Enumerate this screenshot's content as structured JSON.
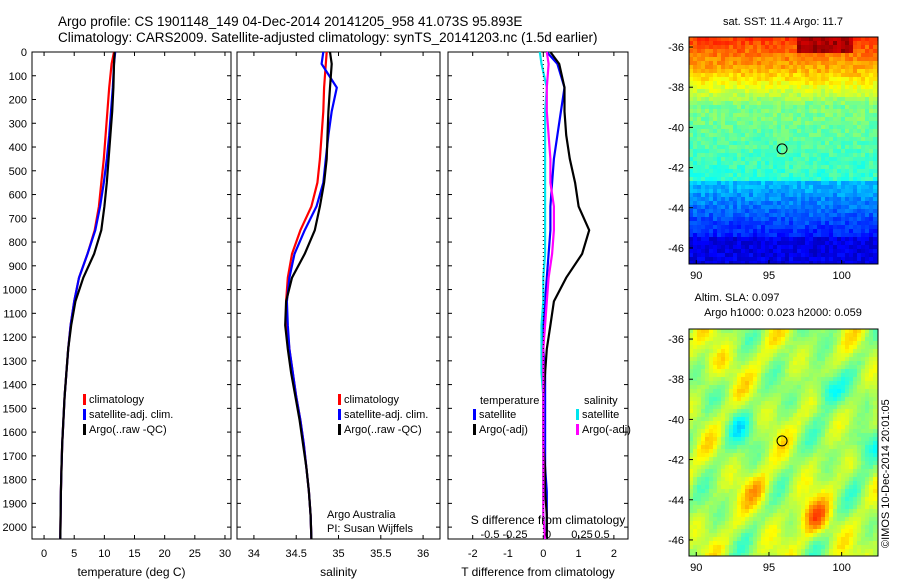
{
  "header": {
    "line1": "Argo profile: CS 1901148_149 04-Dec-2014 20141205_958 41.073S 95.893E",
    "line2": "Climatology: CARS2009. Satellite-adjusted climatology: synTS_20141203.nc (1.5d earlier)"
  },
  "side_label": "©IMOS 10-Dec-2014 20:01:05",
  "colors": {
    "climatology": "#ff0000",
    "satellite": "#0000ff",
    "argo": "#000000",
    "sal_satellite": "#00e5ee",
    "sal_argo": "#ff00ff"
  },
  "chart_data": [
    {
      "type": "line",
      "panel": "temperature",
      "xlabel": "temperature (deg C)",
      "ylabel": "",
      "xlim": [
        -2,
        31
      ],
      "ylim": [
        2050,
        0
      ],
      "xticks": [
        "0",
        "5",
        "10",
        "15",
        "20",
        "25",
        "30"
      ],
      "yticks": [
        "0",
        "100",
        "200",
        "300",
        "400",
        "500",
        "600",
        "700",
        "800",
        "900",
        "1000",
        "1100",
        "1200",
        "1300",
        "1400",
        "1500",
        "1600",
        "1700",
        "1800",
        "1900",
        "2000"
      ],
      "legend": [
        "climatology",
        "satellite-adj. clim.",
        "Argo(..raw -QC)"
      ],
      "series": [
        {
          "name": "climatology",
          "x": [
            11.6,
            11.2,
            10.8,
            10.5,
            10.2,
            9.9,
            9.5,
            9.1,
            8.4,
            7.2,
            5.8,
            5.0,
            4.4,
            4.0,
            3.7,
            3.4,
            3.2,
            3.0,
            2.9,
            2.8,
            2.75,
            2.7
          ],
          "y": [
            0,
            50,
            150,
            250,
            350,
            450,
            550,
            650,
            750,
            850,
            950,
            1050,
            1150,
            1250,
            1350,
            1450,
            1550,
            1650,
            1750,
            1850,
            1950,
            2050
          ]
        },
        {
          "name": "satellite-adj. clim.",
          "x": [
            11.8,
            11.6,
            11.4,
            11.1,
            10.8,
            10.4,
            9.9,
            9.3,
            8.5,
            7.2,
            5.8,
            5.0,
            4.4,
            4.0,
            3.7,
            3.4,
            3.2,
            3.0,
            2.9,
            2.8,
            2.75,
            2.7
          ],
          "y": [
            0,
            50,
            150,
            250,
            350,
            450,
            550,
            650,
            750,
            850,
            950,
            1050,
            1150,
            1250,
            1350,
            1450,
            1550,
            1650,
            1750,
            1850,
            1950,
            2050
          ]
        },
        {
          "name": "Argo(..raw -QC)",
          "x": [
            11.7,
            11.6,
            11.5,
            11.3,
            11.0,
            10.7,
            10.4,
            10.0,
            9.5,
            8.3,
            6.5,
            5.2,
            4.5,
            4.0,
            3.7,
            3.4,
            3.2,
            3.0,
            2.9,
            2.8,
            2.75,
            2.7
          ],
          "y": [
            0,
            50,
            150,
            250,
            350,
            450,
            550,
            650,
            750,
            850,
            950,
            1050,
            1150,
            1250,
            1350,
            1450,
            1550,
            1650,
            1750,
            1850,
            1950,
            2050
          ]
        }
      ]
    },
    {
      "type": "line",
      "panel": "salinity",
      "xlabel": "salinity",
      "xlim": [
        33.8,
        36.2
      ],
      "ylim": [
        2050,
        0
      ],
      "xticks": [
        "34",
        "34.5",
        "35",
        "35.5",
        "36"
      ],
      "legend": [
        "climatology",
        "satellite-adj. clim.",
        "Argo(..raw -QC)"
      ],
      "annotation": [
        "Argo Australia",
        "PI: Susan Wijffels"
      ],
      "series": [
        {
          "name": "climatology",
          "x": [
            34.86,
            34.85,
            34.83,
            34.82,
            34.8,
            34.78,
            34.75,
            34.68,
            34.55,
            34.45,
            34.4,
            34.38,
            34.39,
            34.42,
            34.46,
            34.5,
            34.55,
            34.59,
            34.62,
            34.65,
            34.67,
            34.68
          ],
          "y": [
            0,
            50,
            150,
            250,
            350,
            450,
            550,
            650,
            750,
            850,
            950,
            1050,
            1150,
            1250,
            1350,
            1450,
            1550,
            1650,
            1750,
            1850,
            1950,
            2050
          ]
        },
        {
          "name": "satellite-adj. clim.",
          "x": [
            34.82,
            34.8,
            34.98,
            34.92,
            34.88,
            34.85,
            34.82,
            34.74,
            34.6,
            34.48,
            34.42,
            34.39,
            34.4,
            34.42,
            34.46,
            34.5,
            34.55,
            34.59,
            34.62,
            34.65,
            34.67,
            34.68
          ],
          "y": [
            0,
            50,
            150,
            250,
            350,
            450,
            550,
            650,
            750,
            850,
            950,
            1050,
            1150,
            1250,
            1350,
            1450,
            1550,
            1650,
            1750,
            1850,
            1950,
            2050
          ]
        },
        {
          "name": "Argo(..raw -QC)",
          "x": [
            34.9,
            34.92,
            34.9,
            34.88,
            34.87,
            34.86,
            34.83,
            34.78,
            34.72,
            34.6,
            34.45,
            34.38,
            34.37,
            34.4,
            34.44,
            34.49,
            34.54,
            34.58,
            34.62,
            34.65,
            34.67,
            34.68
          ],
          "y": [
            0,
            50,
            150,
            250,
            350,
            450,
            550,
            650,
            750,
            850,
            950,
            1050,
            1150,
            1250,
            1350,
            1450,
            1550,
            1650,
            1750,
            1850,
            1950,
            2050
          ]
        }
      ]
    },
    {
      "type": "line",
      "panel": "difference",
      "xlabel": "T difference from climatology",
      "xlabel_top": "S difference from climatology",
      "xlim": [
        -2.7,
        2.4
      ],
      "ylim": [
        2050,
        0
      ],
      "xticks": [
        "-2",
        "-1",
        "0",
        "1",
        "2"
      ],
      "xticks_s": [
        "-0.5",
        "-0.25",
        "0",
        "0.25",
        "0.5"
      ],
      "legend_temperature_title": "temperature",
      "legend_salinity_title": "salinity",
      "legend": [
        "satellite",
        "Argo(-adj)",
        "satellite",
        "Argo(-adj)"
      ],
      "series": [
        {
          "name": "satellite",
          "x": [
            0.1,
            0.4,
            0.6,
            0.5,
            0.4,
            0.3,
            0.25,
            0.2,
            0.2,
            0.15,
            0.1,
            0.05,
            0.0,
            0.0,
            0.05,
            0.05,
            0.05,
            0.05,
            0.05,
            0.1,
            0.1,
            0.1
          ],
          "y": [
            0,
            50,
            150,
            250,
            350,
            450,
            550,
            650,
            750,
            850,
            950,
            1050,
            1150,
            1250,
            1350,
            1450,
            1550,
            1650,
            1750,
            1850,
            1950,
            2050
          ]
        },
        {
          "name": "Argo(-adj)",
          "x": [
            0.2,
            0.45,
            0.6,
            0.6,
            0.65,
            0.75,
            0.9,
            1.0,
            1.3,
            1.1,
            0.65,
            0.3,
            0.2,
            0.1,
            0.05,
            0.0,
            0.0,
            0.0,
            0.05,
            0.05,
            0.1,
            0.1
          ],
          "y": [
            0,
            50,
            150,
            250,
            350,
            450,
            550,
            650,
            750,
            850,
            950,
            1050,
            1150,
            1250,
            1350,
            1450,
            1550,
            1650,
            1750,
            1850,
            1950,
            2050
          ]
        },
        {
          "name": "satellite",
          "x": [
            -0.1,
            -0.05,
            0.1,
            0.05,
            0.05,
            0.05,
            0.05,
            0.05,
            0.05,
            0.05,
            0.0,
            0.0,
            -0.05,
            -0.05,
            -0.05,
            0.0,
            0.0,
            0.0,
            0.0,
            0.0,
            0.0,
            0.05
          ],
          "y": [
            0,
            50,
            150,
            250,
            350,
            450,
            550,
            650,
            750,
            850,
            950,
            1050,
            1150,
            1250,
            1350,
            1450,
            1550,
            1650,
            1750,
            1850,
            1950,
            2050
          ]
        },
        {
          "name": "Argo(-adj)",
          "x": [
            0.1,
            0.15,
            0.1,
            0.1,
            0.15,
            0.2,
            0.2,
            0.3,
            0.3,
            0.25,
            0.15,
            0.1,
            0.05,
            0.0,
            0.0,
            0.0,
            0.0,
            0.0,
            0.0,
            0.0,
            0.0,
            0.05
          ],
          "y": [
            0,
            50,
            150,
            250,
            350,
            450,
            550,
            650,
            750,
            850,
            950,
            1050,
            1150,
            1250,
            1350,
            1450,
            1550,
            1650,
            1750,
            1850,
            1950,
            2050
          ]
        }
      ]
    },
    {
      "type": "heatmap",
      "panel": "sst-map",
      "title": "sat. SST: 11.4  Argo: 11.7",
      "xlim": [
        89.5,
        102.5
      ],
      "ylim": [
        -46.8,
        -35.5
      ],
      "xticks": [
        "90",
        "95",
        "100"
      ],
      "yticks": [
        "-36",
        "-38",
        "-40",
        "-42",
        "-44",
        "-46"
      ],
      "marker": {
        "lon": 95.9,
        "lat": -41.07
      }
    },
    {
      "type": "heatmap",
      "panel": "sla-map",
      "title_line1": "Altim. SLA: 0.097",
      "title_line2": "Argo h1000: 0.023 h2000: 0.059",
      "xlim": [
        89.5,
        102.5
      ],
      "ylim": [
        -46.8,
        -35.5
      ],
      "xticks": [
        "90",
        "95",
        "100"
      ],
      "yticks": [
        "-36",
        "-38",
        "-40",
        "-42",
        "-44",
        "-46"
      ],
      "marker": {
        "lon": 95.9,
        "lat": -41.07
      }
    }
  ]
}
